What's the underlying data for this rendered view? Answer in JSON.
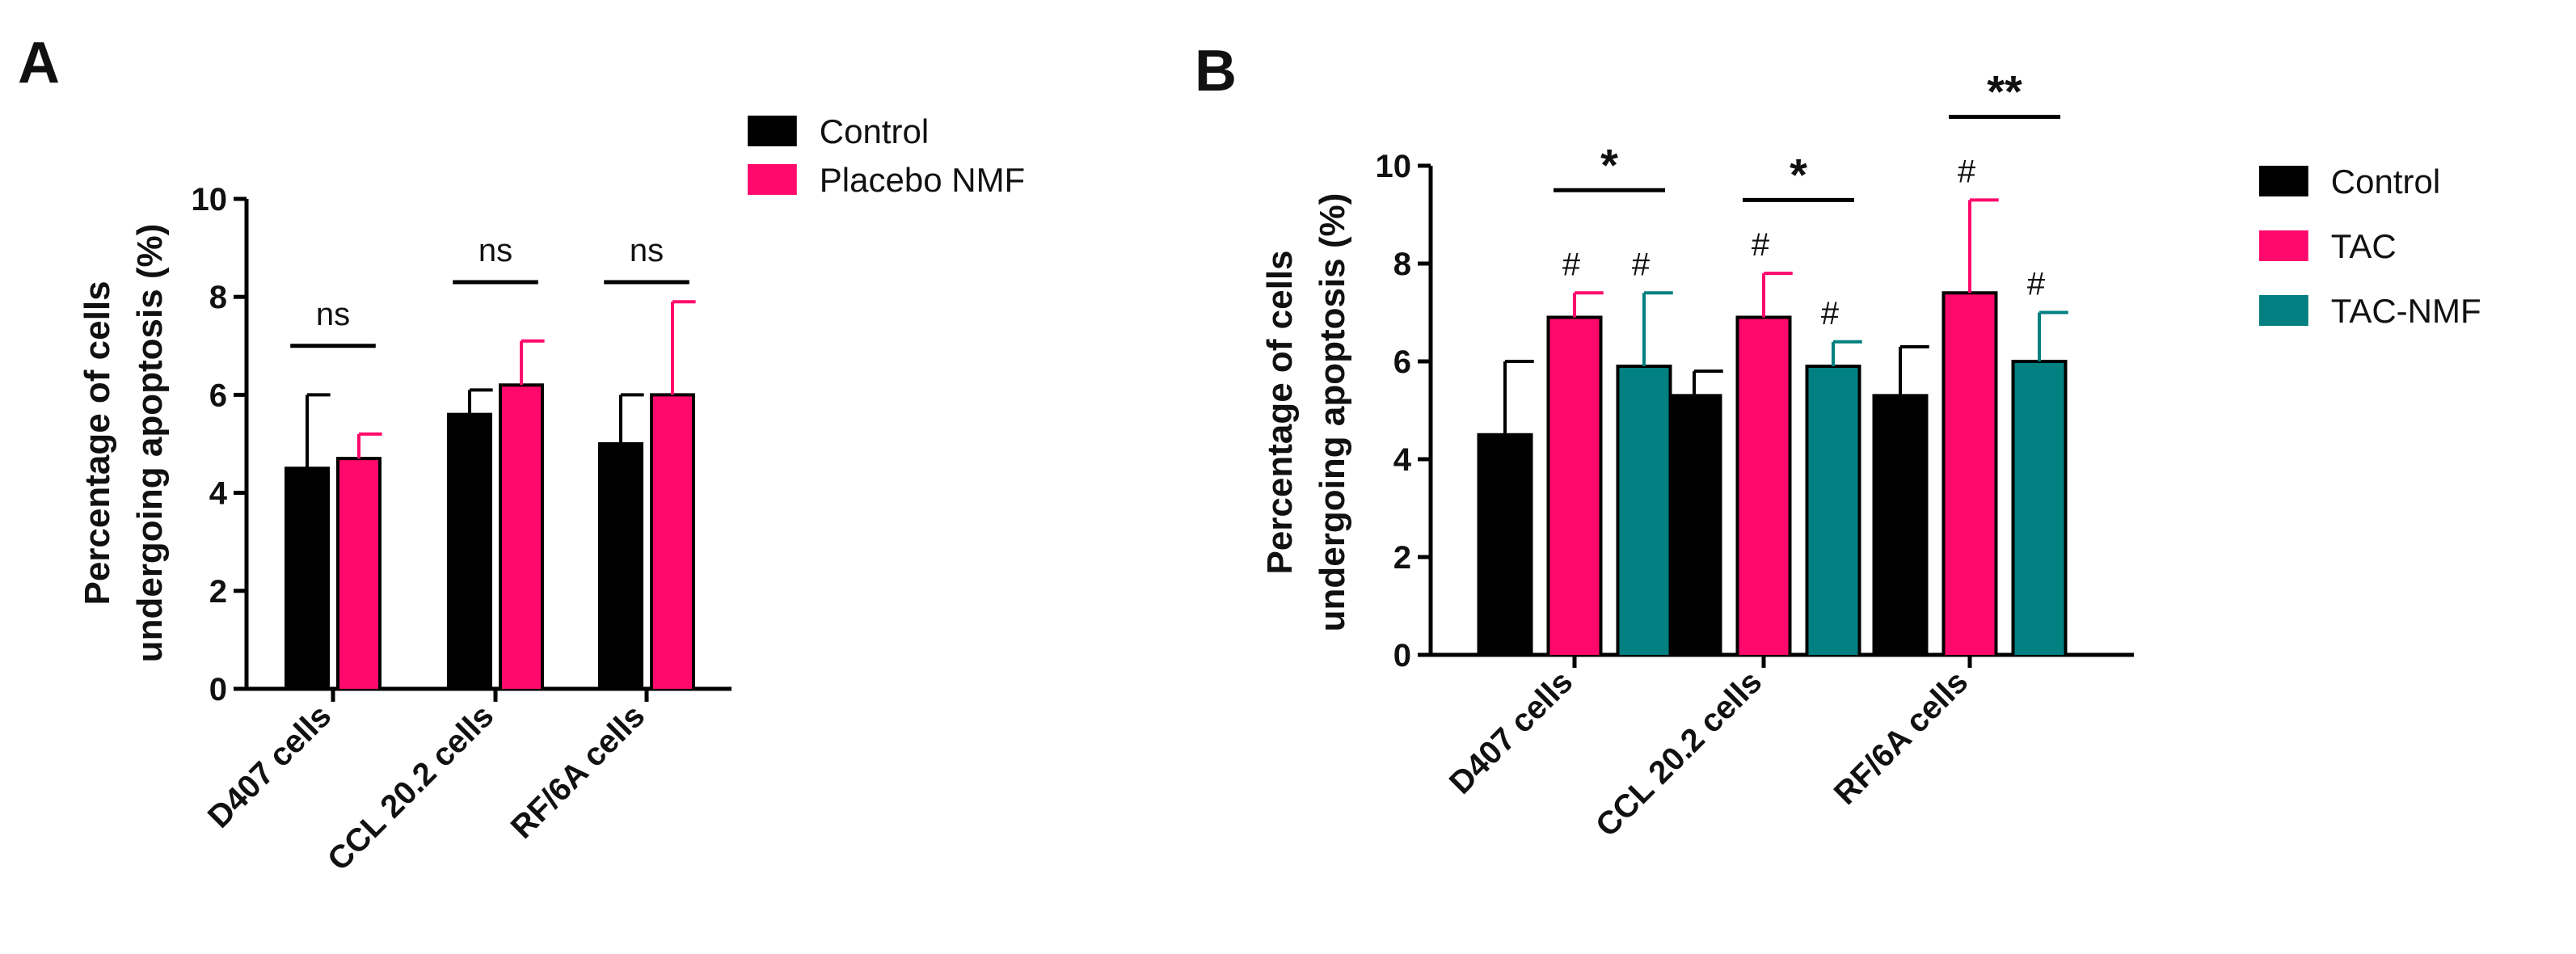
{
  "chart_data": [
    {
      "panel": "A",
      "type": "bar",
      "ylabel_lines": [
        "Percentage of cells",
        "undergoing apoptosis (%)"
      ],
      "ylim": [
        0,
        10
      ],
      "yticks": [
        0,
        2,
        4,
        6,
        8,
        10
      ],
      "categories": [
        "D407 cells",
        "CCL 20.2 cells",
        "RF/6A cells"
      ],
      "series": [
        {
          "name": "Control",
          "color": "#000000",
          "values": [
            4.5,
            5.6,
            5.0
          ],
          "errors": [
            1.5,
            0.5,
            1.0
          ]
        },
        {
          "name": "Placebo NMF",
          "color": "#FF0A6C",
          "values": [
            4.7,
            6.2,
            6.0
          ],
          "errors": [
            0.5,
            0.9,
            1.9
          ]
        }
      ],
      "annotations": [
        {
          "text": "ns",
          "category": 0,
          "from": 0,
          "to": 1,
          "y": 7.0
        },
        {
          "text": "ns",
          "category": 1,
          "from": 0,
          "to": 1,
          "y": 8.3
        },
        {
          "text": "ns",
          "category": 2,
          "from": 0,
          "to": 1,
          "y": 8.3
        }
      ],
      "legend": "top-right"
    },
    {
      "panel": "B",
      "type": "bar",
      "ylabel_lines": [
        "Percentage of cells",
        "undergoing apoptosis (%)"
      ],
      "ylim": [
        0,
        10
      ],
      "yticks": [
        0,
        2,
        4,
        6,
        8,
        10
      ],
      "categories": [
        "D407 cells",
        "CCL 20.2 cells",
        "RF/6A cells"
      ],
      "series": [
        {
          "name": "Control",
          "color": "#000000",
          "values": [
            4.5,
            5.3,
            5.3
          ],
          "errors": [
            1.5,
            0.5,
            1.0
          ],
          "marks": [
            "",
            "",
            ""
          ]
        },
        {
          "name": "TAC",
          "color": "#FF0A6C",
          "values": [
            6.9,
            6.9,
            7.4
          ],
          "errors": [
            0.5,
            0.9,
            1.9
          ],
          "marks": [
            "#",
            "#",
            "#"
          ]
        },
        {
          "name": "TAC-NMF",
          "color": "#008080",
          "values": [
            5.9,
            5.9,
            6.0
          ],
          "errors": [
            1.5,
            0.5,
            1.0
          ],
          "marks": [
            "#",
            "#",
            "#"
          ]
        }
      ],
      "annotations": [
        {
          "text": "*",
          "category": 0,
          "from": 1,
          "to": 2,
          "y": 9.5
        },
        {
          "text": "*",
          "category": 1,
          "from": 1,
          "to": 2,
          "y": 9.3
        },
        {
          "text": "**",
          "category": 2,
          "from": 1,
          "to": 2,
          "y": 11.0
        }
      ],
      "legend": "right"
    }
  ]
}
